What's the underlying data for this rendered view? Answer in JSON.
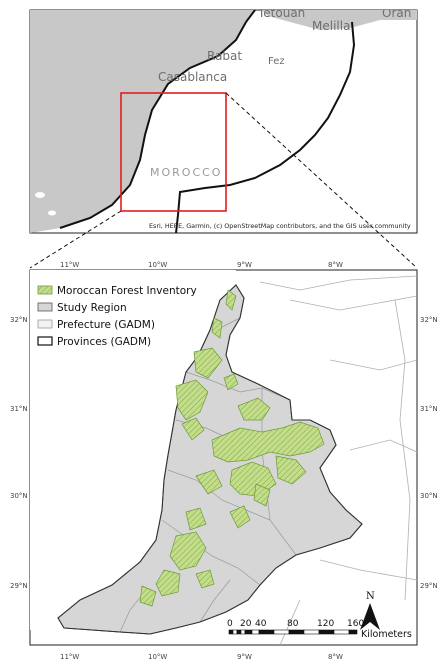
{
  "inset": {
    "cities": {
      "oran": "Oran",
      "melilla": "Melilla",
      "tetouan": "Tetouan",
      "rabat": "Rabat",
      "fez": "Fez",
      "casablanca": "Casablanca",
      "morocco": "MOROCCO"
    },
    "attribution": "Esri, HERE, Garmin, (c) OpenStreetMap contributors, and the GIS user community"
  },
  "main_map": {
    "x_ticks": [
      "11°W",
      "10°W",
      "9°W",
      "8°W"
    ],
    "y_ticks": [
      "32°N",
      "31°N",
      "30°N",
      "29°N"
    ],
    "legend": [
      {
        "label": "Moroccan Forest Inventory",
        "fill": "#c4dd8a",
        "stroke": "#6e9a3a",
        "hatch": true
      },
      {
        "label": "Study Region",
        "fill": "#d6d6d6",
        "stroke": "#555555",
        "hatch": false
      },
      {
        "label": "Prefecture (GADM)",
        "fill": "#f3f3f3",
        "stroke": "#999999",
        "hatch": false
      },
      {
        "label": "Provinces (GADM)",
        "fill": "#ffffff",
        "stroke": "#111111",
        "hatch": false
      }
    ],
    "north_arrow": "N",
    "scale_bar": {
      "labels": [
        "0",
        "20",
        "40",
        "80",
        "120",
        "160"
      ],
      "unit": "Kilometers"
    }
  },
  "colors": {
    "land": "#ffffff",
    "water": "#c8c8c8",
    "study_region": "#d6d6d6",
    "forest": "#c4dd8a",
    "forest_outline": "#6e9a3a",
    "extent_box": "#e02020"
  }
}
